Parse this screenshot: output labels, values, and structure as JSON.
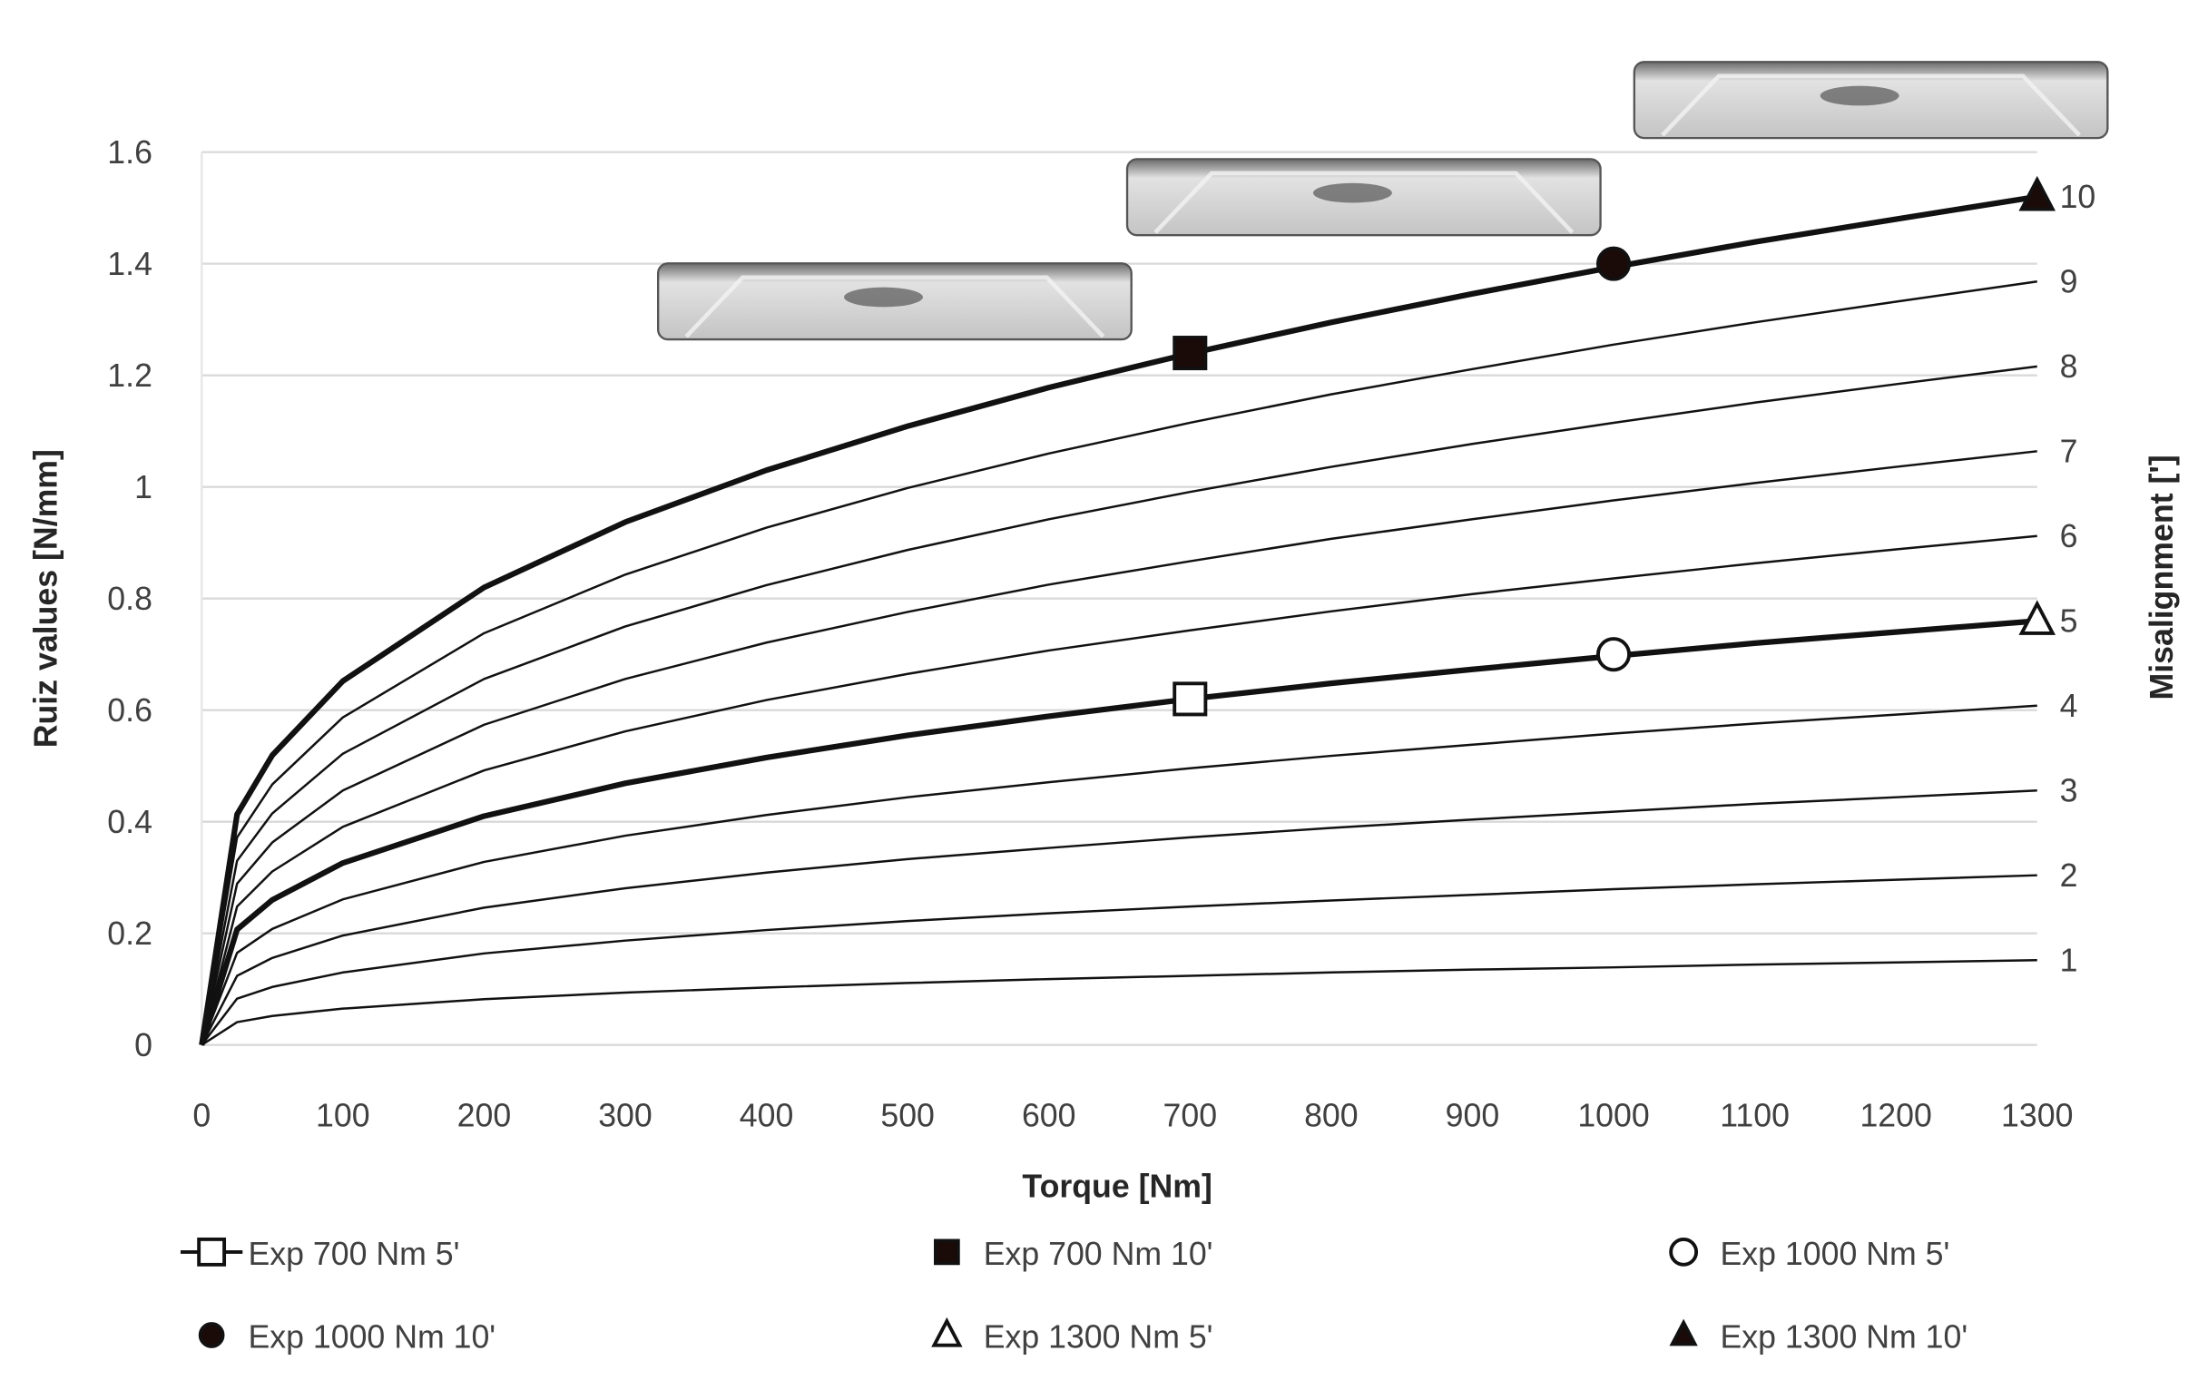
{
  "chart_data": {
    "type": "line",
    "title": "",
    "xlabel": "Torque [Nm]",
    "ylabel": "Ruiz values [N/mm]",
    "y2label": "Misalignment [']",
    "xlim": [
      0,
      1300
    ],
    "ylim": [
      0,
      1.6
    ],
    "grid": "horizontal",
    "legend_position": "bottom",
    "x_ticks": [
      "0",
      "100",
      "200",
      "300",
      "400",
      "500",
      "600",
      "700",
      "800",
      "900",
      "1000",
      "1100",
      "1200",
      "1300"
    ],
    "y_ticks": [
      "0",
      "0.2",
      "0.4",
      "0.6",
      "0.8",
      "1",
      "1.2",
      "1.4",
      "1.6"
    ],
    "x": [
      0,
      25,
      50,
      100,
      200,
      300,
      400,
      500,
      600,
      700,
      800,
      900,
      1000,
      1100,
      1200,
      1300
    ],
    "series": [
      {
        "name": "1",
        "thick": false,
        "values": [
          0,
          0.041,
          0.052,
          0.065,
          0.082,
          0.094,
          0.103,
          0.111,
          0.118,
          0.124,
          0.13,
          0.135,
          0.139,
          0.144,
          0.148,
          0.152
        ]
      },
      {
        "name": "2",
        "thick": false,
        "values": [
          0,
          0.083,
          0.104,
          0.13,
          0.164,
          0.187,
          0.206,
          0.222,
          0.236,
          0.248,
          0.259,
          0.269,
          0.279,
          0.288,
          0.296,
          0.304
        ]
      },
      {
        "name": "3",
        "thick": false,
        "values": [
          0,
          0.124,
          0.156,
          0.196,
          0.246,
          0.281,
          0.309,
          0.333,
          0.353,
          0.372,
          0.389,
          0.404,
          0.418,
          0.432,
          0.444,
          0.456
        ]
      },
      {
        "name": "4",
        "thick": false,
        "values": [
          0,
          0.165,
          0.208,
          0.261,
          0.328,
          0.375,
          0.412,
          0.444,
          0.471,
          0.496,
          0.518,
          0.538,
          0.558,
          0.576,
          0.592,
          0.608
        ]
      },
      {
        "name": "5",
        "thick": true,
        "values": [
          0,
          0.207,
          0.26,
          0.326,
          0.41,
          0.469,
          0.515,
          0.555,
          0.589,
          0.62,
          0.648,
          0.673,
          0.697,
          0.72,
          0.74,
          0.76
        ]
      },
      {
        "name": "6",
        "thick": false,
        "values": [
          0,
          0.248,
          0.311,
          0.391,
          0.492,
          0.562,
          0.618,
          0.665,
          0.707,
          0.743,
          0.777,
          0.808,
          0.836,
          0.863,
          0.888,
          0.912
        ]
      },
      {
        "name": "7",
        "thick": false,
        "values": [
          0,
          0.289,
          0.363,
          0.456,
          0.574,
          0.656,
          0.721,
          0.776,
          0.825,
          0.867,
          0.907,
          0.942,
          0.976,
          1.007,
          1.036,
          1.064
        ]
      },
      {
        "name": "8",
        "thick": false,
        "values": [
          0,
          0.33,
          0.415,
          0.522,
          0.656,
          0.75,
          0.824,
          0.887,
          0.942,
          0.991,
          1.036,
          1.077,
          1.115,
          1.151,
          1.184,
          1.216
        ]
      },
      {
        "name": "9",
        "thick": false,
        "values": [
          0,
          0.372,
          0.467,
          0.587,
          0.738,
          0.843,
          0.927,
          0.998,
          1.06,
          1.115,
          1.166,
          1.211,
          1.255,
          1.295,
          1.332,
          1.368
        ]
      },
      {
        "name": "10",
        "thick": true,
        "values": [
          0,
          0.413,
          0.519,
          0.652,
          0.82,
          0.937,
          1.03,
          1.109,
          1.178,
          1.239,
          1.295,
          1.346,
          1.394,
          1.439,
          1.48,
          1.52
        ]
      }
    ],
    "markers": [
      {
        "name": "Exp 700 Nm 5'",
        "shape": "square",
        "filled": false,
        "x": 700,
        "y": 0.62
      },
      {
        "name": "Exp 700 Nm 10'",
        "shape": "square",
        "filled": true,
        "x": 700,
        "y": 1.24
      },
      {
        "name": "Exp 1000 Nm 5'",
        "shape": "circle",
        "filled": false,
        "x": 1000,
        "y": 0.7
      },
      {
        "name": "Exp 1000 Nm 10'",
        "shape": "circle",
        "filled": true,
        "x": 1000,
        "y": 1.4
      },
      {
        "name": "Exp 1300 Nm 5'",
        "shape": "triangle",
        "filled": false,
        "x": 1300,
        "y": 0.76
      },
      {
        "name": "Exp 1300 Nm 10'",
        "shape": "triangle",
        "filled": true,
        "x": 1300,
        "y": 1.52
      }
    ],
    "colors": {
      "line": "#111111",
      "grid": "#d9d9d9",
      "text": "#404040",
      "marker_fill_dark": "#1a0a08"
    }
  }
}
